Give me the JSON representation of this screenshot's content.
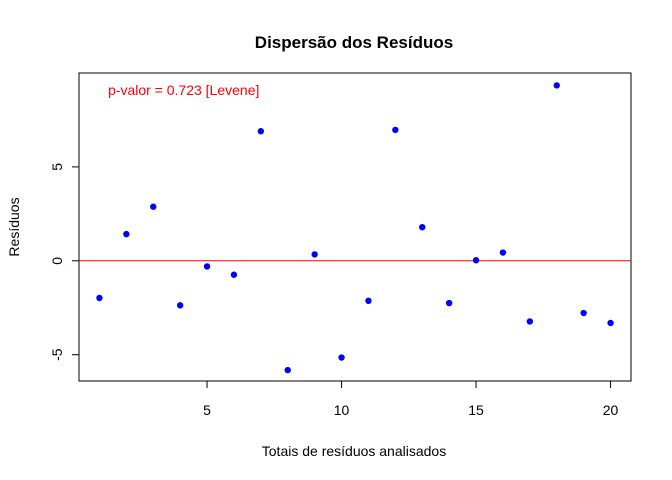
{
  "chart_data": {
    "type": "scatter",
    "title": "Dispersão dos Resíduos",
    "xlabel": "Totais de resíduos analisados",
    "ylabel": "Resíduos",
    "annotation": "p-valor = 0.723 [Levene]",
    "xlim": [
      0.24,
      20.76
    ],
    "ylim": [
      -6.4,
      10.0
    ],
    "xticks": [
      5,
      10,
      15,
      20
    ],
    "yticks": [
      -5,
      0,
      5
    ],
    "grid": false,
    "point_color": "#0000ff",
    "reference_line": {
      "y": 0,
      "color": "#ff0000"
    },
    "x": [
      1,
      2,
      3,
      4,
      5,
      6,
      7,
      8,
      9,
      10,
      11,
      12,
      13,
      14,
      15,
      16,
      17,
      18,
      19,
      20
    ],
    "y": [
      -1.98,
      1.42,
      2.88,
      -2.37,
      -0.3,
      -0.74,
      6.9,
      -5.82,
      0.34,
      -5.15,
      -2.13,
      6.97,
      1.79,
      -2.25,
      0.03,
      0.44,
      -3.23,
      9.34,
      -2.78,
      -3.31
    ]
  }
}
